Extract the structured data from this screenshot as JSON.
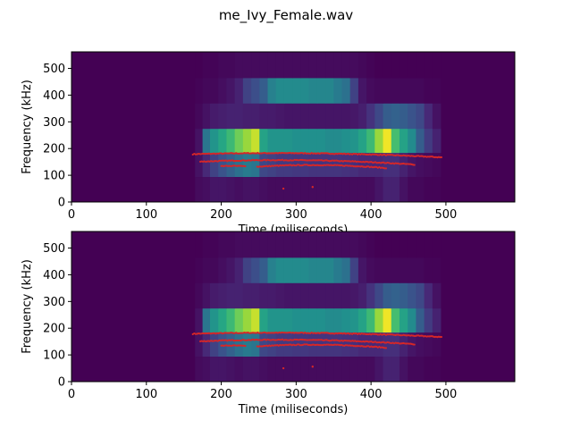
{
  "figure": {
    "suptitle": "me_Ivy_Female.wav"
  },
  "colors": {
    "background": "#440154",
    "pitch_points": "#d62728"
  },
  "chart_data": [
    {
      "type": "heatmap",
      "xlabel": "Time (miliseconds)",
      "ylabel": "Frequency (kHz)",
      "xlim": [
        0,
        592
      ],
      "ylim": [
        0,
        562
      ],
      "xticks": [
        0,
        100,
        200,
        300,
        400,
        500
      ],
      "yticks": [
        0,
        100,
        200,
        300,
        400,
        500
      ],
      "colormap": "viridis",
      "x_edges": [
        165,
        175,
        185,
        196,
        207,
        218,
        229,
        240,
        251,
        262,
        273,
        284,
        295,
        306,
        317,
        328,
        339,
        350,
        361,
        372,
        383,
        394,
        405,
        416,
        427,
        438,
        449,
        460,
        471,
        482,
        493
      ],
      "y_edges": [
        0,
        95,
        185,
        275,
        370,
        465,
        562
      ],
      "intensity": [
        [
          0.03,
          0.04,
          0.06,
          0.06,
          0.05,
          0.04,
          0.05,
          0.05,
          0.04,
          0.03,
          0.03,
          0.03,
          0.03,
          0.03,
          0.03,
          0.03,
          0.03,
          0.03,
          0.03,
          0.03,
          0.03,
          0.03,
          0.06,
          0.1,
          0.1,
          0.05,
          0.02,
          0.02,
          0.01,
          0.01
        ],
        [
          0.05,
          0.12,
          0.2,
          0.26,
          0.32,
          0.38,
          0.42,
          0.4,
          0.22,
          0.2,
          0.18,
          0.18,
          0.17,
          0.17,
          0.16,
          0.16,
          0.16,
          0.16,
          0.15,
          0.14,
          0.12,
          0.12,
          0.12,
          0.14,
          0.14,
          0.1,
          0.06,
          0.04,
          0.03,
          0.02
        ],
        [
          0.05,
          0.4,
          0.52,
          0.6,
          0.68,
          0.78,
          0.85,
          0.92,
          0.58,
          0.52,
          0.52,
          0.52,
          0.5,
          0.5,
          0.5,
          0.5,
          0.48,
          0.48,
          0.5,
          0.52,
          0.58,
          0.68,
          0.85,
          0.98,
          0.7,
          0.58,
          0.48,
          0.3,
          0.18,
          0.1
        ],
        [
          0.02,
          0.05,
          0.08,
          0.09,
          0.1,
          0.1,
          0.09,
          0.09,
          0.08,
          0.08,
          0.07,
          0.06,
          0.06,
          0.06,
          0.06,
          0.06,
          0.06,
          0.06,
          0.06,
          0.07,
          0.09,
          0.15,
          0.22,
          0.3,
          0.32,
          0.3,
          0.26,
          0.22,
          0.12,
          0.05
        ],
        [
          0.01,
          0.02,
          0.02,
          0.04,
          0.06,
          0.1,
          0.2,
          0.24,
          0.3,
          0.44,
          0.48,
          0.48,
          0.48,
          0.48,
          0.46,
          0.46,
          0.46,
          0.42,
          0.38,
          0.2,
          0.06,
          0.03,
          0.02,
          0.02,
          0.02,
          0.02,
          0.02,
          0.02,
          0.01,
          0.01
        ],
        [
          0.0,
          0.01,
          0.01,
          0.02,
          0.02,
          0.03,
          0.03,
          0.03,
          0.03,
          0.03,
          0.03,
          0.03,
          0.03,
          0.03,
          0.03,
          0.03,
          0.03,
          0.03,
          0.03,
          0.03,
          0.02,
          0.01,
          0.0,
          0.0,
          0.0,
          0.0,
          0.0,
          0.0,
          0.0,
          0.0
        ]
      ],
      "pitch_tracks": [
        {
          "t_start": 162,
          "t_end": 494,
          "f_start": 179,
          "f_mid": 182,
          "f_end": 167
        },
        {
          "t_start": 172,
          "t_end": 458,
          "f_start": 151,
          "f_mid": 156,
          "f_end": 140
        },
        {
          "t_start": 248,
          "t_end": 420,
          "f_start": 132,
          "f_mid": 138,
          "f_end": 127
        },
        {
          "t_start": 200,
          "t_end": 232,
          "f_start": 134,
          "f_mid": 135,
          "f_end": 133
        }
      ],
      "pitch_outliers": [
        {
          "t": 283,
          "f": 50
        },
        {
          "t": 322,
          "f": 56
        }
      ]
    },
    {
      "type": "heatmap",
      "xlabel": "Time (miliseconds)",
      "ylabel": "Frequency (kHz)",
      "xlim": [
        0,
        592
      ],
      "ylim": [
        0,
        562
      ],
      "xticks": [
        0,
        100,
        200,
        300,
        400,
        500
      ],
      "yticks": [
        0,
        100,
        200,
        300,
        400,
        500
      ],
      "colormap": "viridis",
      "x_edges": [
        165,
        175,
        185,
        196,
        207,
        218,
        229,
        240,
        251,
        262,
        273,
        284,
        295,
        306,
        317,
        328,
        339,
        350,
        361,
        372,
        383,
        394,
        405,
        416,
        427,
        438,
        449,
        460,
        471,
        482,
        493
      ],
      "y_edges": [
        0,
        95,
        185,
        275,
        370,
        465,
        562
      ],
      "intensity": [
        [
          0.03,
          0.04,
          0.06,
          0.06,
          0.05,
          0.04,
          0.05,
          0.05,
          0.04,
          0.03,
          0.03,
          0.03,
          0.03,
          0.03,
          0.03,
          0.03,
          0.03,
          0.03,
          0.03,
          0.03,
          0.03,
          0.03,
          0.06,
          0.1,
          0.1,
          0.05,
          0.02,
          0.02,
          0.01,
          0.01
        ],
        [
          0.05,
          0.12,
          0.2,
          0.26,
          0.32,
          0.38,
          0.42,
          0.4,
          0.22,
          0.2,
          0.18,
          0.18,
          0.17,
          0.17,
          0.16,
          0.16,
          0.16,
          0.16,
          0.15,
          0.14,
          0.12,
          0.12,
          0.12,
          0.14,
          0.14,
          0.1,
          0.06,
          0.04,
          0.03,
          0.02
        ],
        [
          0.05,
          0.4,
          0.52,
          0.6,
          0.68,
          0.78,
          0.85,
          0.92,
          0.58,
          0.52,
          0.52,
          0.52,
          0.5,
          0.5,
          0.5,
          0.5,
          0.48,
          0.48,
          0.5,
          0.52,
          0.58,
          0.68,
          0.85,
          0.98,
          0.7,
          0.58,
          0.48,
          0.3,
          0.18,
          0.1
        ],
        [
          0.02,
          0.05,
          0.08,
          0.09,
          0.1,
          0.1,
          0.09,
          0.09,
          0.08,
          0.08,
          0.07,
          0.06,
          0.06,
          0.06,
          0.06,
          0.06,
          0.06,
          0.06,
          0.06,
          0.07,
          0.09,
          0.15,
          0.22,
          0.3,
          0.32,
          0.3,
          0.26,
          0.22,
          0.12,
          0.05
        ],
        [
          0.01,
          0.02,
          0.02,
          0.04,
          0.06,
          0.1,
          0.2,
          0.24,
          0.3,
          0.44,
          0.48,
          0.48,
          0.48,
          0.48,
          0.46,
          0.46,
          0.46,
          0.42,
          0.38,
          0.2,
          0.06,
          0.03,
          0.02,
          0.02,
          0.02,
          0.02,
          0.02,
          0.02,
          0.01,
          0.01
        ],
        [
          0.0,
          0.01,
          0.01,
          0.02,
          0.02,
          0.03,
          0.03,
          0.03,
          0.03,
          0.03,
          0.03,
          0.03,
          0.03,
          0.03,
          0.03,
          0.03,
          0.03,
          0.03,
          0.03,
          0.03,
          0.02,
          0.01,
          0.0,
          0.0,
          0.0,
          0.0,
          0.0,
          0.0,
          0.0,
          0.0
        ]
      ],
      "pitch_tracks": [
        {
          "t_start": 162,
          "t_end": 494,
          "f_start": 179,
          "f_mid": 182,
          "f_end": 167
        },
        {
          "t_start": 172,
          "t_end": 458,
          "f_start": 151,
          "f_mid": 156,
          "f_end": 140
        },
        {
          "t_start": 248,
          "t_end": 420,
          "f_start": 132,
          "f_mid": 138,
          "f_end": 127
        },
        {
          "t_start": 200,
          "t_end": 232,
          "f_start": 134,
          "f_mid": 135,
          "f_end": 133
        }
      ],
      "pitch_outliers": [
        {
          "t": 283,
          "f": 50
        },
        {
          "t": 322,
          "f": 56
        }
      ]
    }
  ]
}
